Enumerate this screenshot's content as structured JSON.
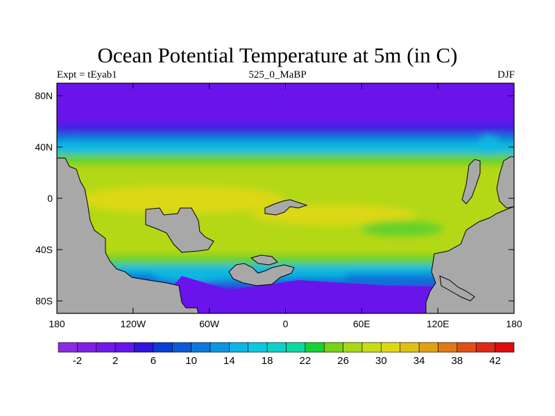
{
  "title": "Ocean Potential Temperature at 5m (in C)",
  "left_subtitle": "Expt = tEyab1",
  "center_subtitle": "525_0_MaBP",
  "right_subtitle": "DJF",
  "lat_labels": [
    "80N",
    "40N",
    "0",
    "40S",
    "80S"
  ],
  "lon_labels": [
    "180",
    "120W",
    "60W",
    "0",
    "60E",
    "120E",
    "180"
  ],
  "colorbar": {
    "colors": [
      "#8a2be2",
      "#7f20e8",
      "#7318ec",
      "#6414ee",
      "#3014e0",
      "#0a3cd8",
      "#0a5ad8",
      "#0a78dc",
      "#0a96e2",
      "#0ab4e6",
      "#0ac8e0",
      "#0ad2c8",
      "#0ad8a0",
      "#14d232",
      "#78d214",
      "#a8d814",
      "#c8dc14",
      "#dcd814",
      "#e0c014",
      "#e0a014",
      "#e07814",
      "#e05014",
      "#e02814",
      "#e00a0a"
    ],
    "tick_labels": [
      "-2",
      "2",
      "6",
      "10",
      "14",
      "18",
      "22",
      "26",
      "30",
      "34",
      "38",
      "42"
    ]
  },
  "colors": {
    "land": "#a8a8a8",
    "polar_ocean": "#6a14ec",
    "deep_blue": "#3a20e0",
    "mid_blue": "#1070d8",
    "cyan": "#10b8e0",
    "green": "#64d22a",
    "lime": "#b4d814",
    "yellow": "#dcd814"
  }
}
